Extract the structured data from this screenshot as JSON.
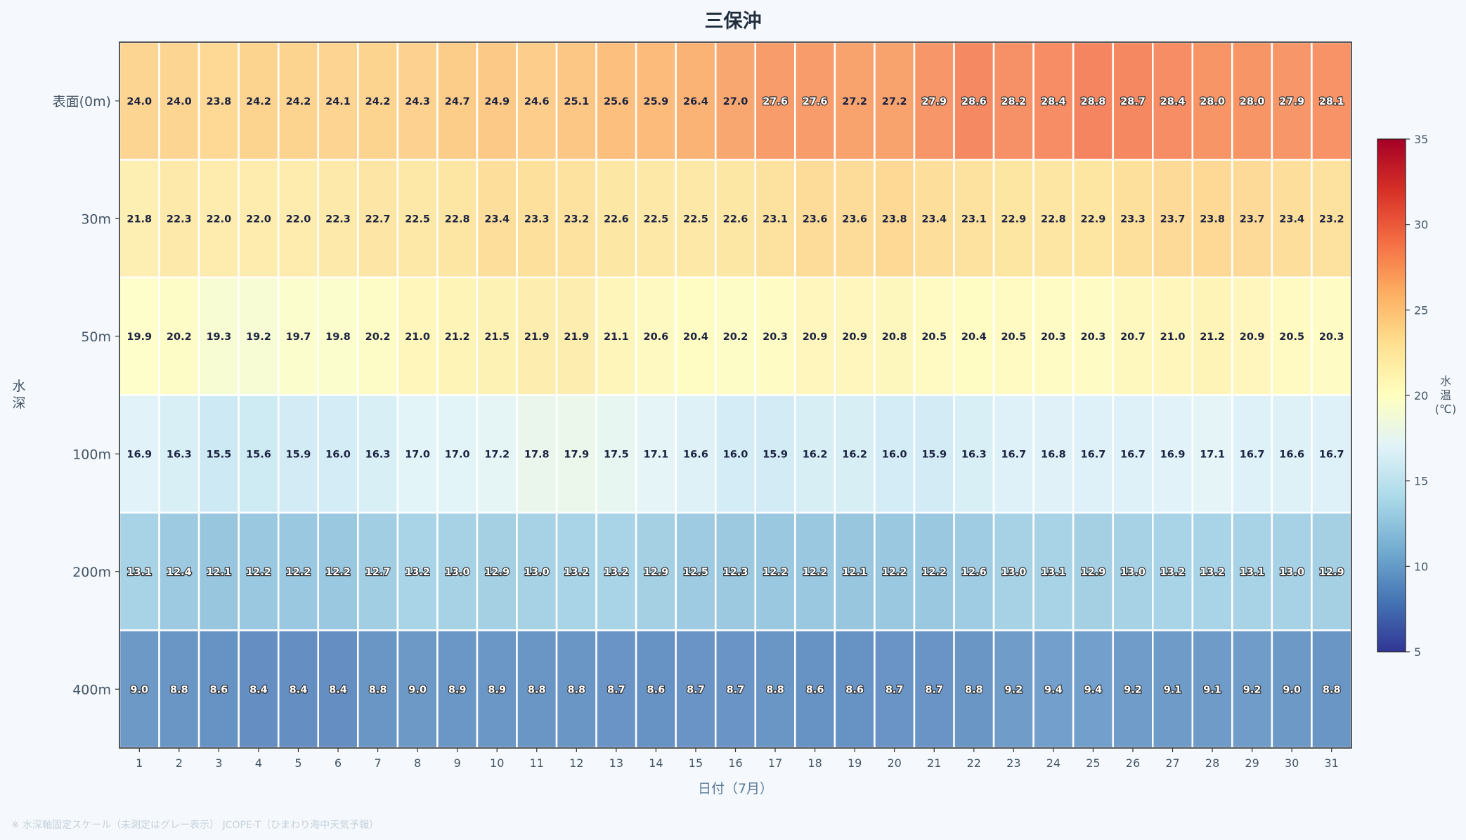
{
  "title": "三保沖",
  "footnote": "※ 水深軸固定スケール（未測定はグレー表示） JCOPE-T（ひまわり海中天気予報）",
  "chart_data": {
    "type": "heatmap",
    "title": "三保沖",
    "xlabel": "日付（7月）",
    "ylabel": "水深",
    "x": [
      "1",
      "2",
      "3",
      "4",
      "5",
      "6",
      "7",
      "8",
      "9",
      "10",
      "11",
      "12",
      "13",
      "14",
      "15",
      "16",
      "17",
      "18",
      "19",
      "20",
      "21",
      "22",
      "23",
      "24",
      "25",
      "26",
      "27",
      "28",
      "29",
      "30",
      "31"
    ],
    "y": [
      "表面(0m)",
      "30m",
      "50m",
      "100m",
      "200m",
      "400m"
    ],
    "values": [
      [
        24.0,
        24.0,
        23.8,
        24.2,
        24.2,
        24.1,
        24.2,
        24.3,
        24.7,
        24.9,
        24.6,
        25.1,
        25.6,
        25.9,
        26.4,
        27.0,
        27.6,
        27.6,
        27.2,
        27.2,
        27.9,
        28.6,
        28.2,
        28.4,
        28.8,
        28.7,
        28.4,
        28.0,
        28.0,
        27.9,
        28.1
      ],
      [
        21.8,
        22.3,
        22.0,
        22.0,
        22.0,
        22.3,
        22.7,
        22.5,
        22.8,
        23.4,
        23.3,
        23.2,
        22.6,
        22.5,
        22.5,
        22.6,
        23.1,
        23.6,
        23.6,
        23.8,
        23.4,
        23.1,
        22.9,
        22.8,
        22.9,
        23.3,
        23.7,
        23.8,
        23.7,
        23.4,
        23.2
      ],
      [
        19.9,
        20.2,
        19.3,
        19.2,
        19.7,
        19.8,
        20.2,
        21.0,
        21.2,
        21.5,
        21.9,
        21.9,
        21.1,
        20.6,
        20.4,
        20.2,
        20.3,
        20.9,
        20.9,
        20.8,
        20.5,
        20.4,
        20.5,
        20.3,
        20.3,
        20.7,
        21.0,
        21.2,
        20.9,
        20.5,
        20.3
      ],
      [
        16.9,
        16.3,
        15.5,
        15.6,
        15.9,
        16.0,
        16.3,
        17.0,
        17.0,
        17.2,
        17.8,
        17.9,
        17.5,
        17.1,
        16.6,
        16.0,
        15.9,
        16.2,
        16.2,
        16.0,
        15.9,
        16.3,
        16.7,
        16.8,
        16.7,
        16.7,
        16.9,
        17.1,
        16.7,
        16.6,
        16.7
      ],
      [
        13.1,
        12.4,
        12.1,
        12.2,
        12.2,
        12.2,
        12.7,
        13.2,
        13.0,
        12.9,
        13.0,
        13.2,
        13.2,
        12.9,
        12.5,
        12.3,
        12.2,
        12.2,
        12.1,
        12.2,
        12.2,
        12.6,
        13.0,
        13.1,
        12.9,
        13.0,
        13.2,
        13.2,
        13.1,
        13.0,
        12.9
      ],
      [
        9.0,
        8.8,
        8.6,
        8.4,
        8.4,
        8.4,
        8.8,
        9.0,
        8.9,
        8.9,
        8.8,
        8.8,
        8.7,
        8.6,
        8.7,
        8.7,
        8.8,
        8.6,
        8.6,
        8.7,
        8.7,
        8.8,
        9.2,
        9.4,
        9.4,
        9.2,
        9.1,
        9.1,
        9.2,
        9.0,
        8.8
      ]
    ],
    "colorbar": {
      "label": "水温(℃)",
      "min": 5,
      "max": 35,
      "ticks": [
        "5",
        "10",
        "15",
        "20",
        "25",
        "30",
        "35"
      ],
      "colormap": "RdYlBu_r"
    },
    "grid": false
  }
}
